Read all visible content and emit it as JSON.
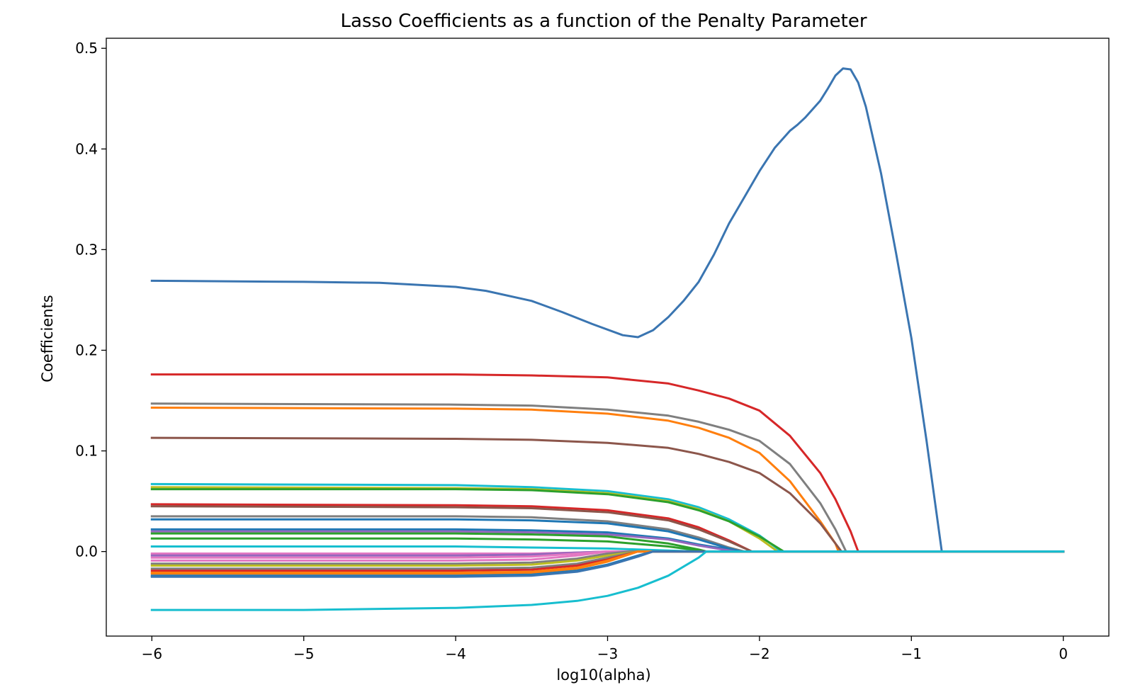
{
  "chart_data": {
    "type": "line",
    "title": "Lasso Coefficients as a function of the Penalty Parameter",
    "xlabel": "log10(alpha)",
    "ylabel": "Coefficients",
    "xlim": [
      -6.3,
      0.3
    ],
    "ylim": [
      -0.084,
      0.51
    ],
    "xticks": [
      -6,
      -5,
      -4,
      -3,
      -2,
      -1,
      0
    ],
    "xtick_labels": [
      "−6",
      "−5",
      "−4",
      "−3",
      "−2",
      "−1",
      "0"
    ],
    "yticks": [
      0.0,
      0.1,
      0.2,
      0.3,
      0.4,
      0.5
    ],
    "ytick_labels": [
      "0.0",
      "0.1",
      "0.2",
      "0.3",
      "0.4",
      "0.5"
    ],
    "grid": false,
    "legend": false,
    "series": [
      {
        "color": "#3a75b1",
        "x": [
          -6,
          -5,
          -4.5,
          -4,
          -3.8,
          -3.5,
          -3.3,
          -3.1,
          -2.9,
          -2.8,
          -2.7,
          -2.6,
          -2.5,
          -2.4,
          -2.3,
          -2.2,
          -2.1,
          -2.0,
          -1.9,
          -1.8,
          -1.75,
          -1.7,
          -1.6,
          -1.55,
          -1.5,
          -1.45,
          -1.4,
          -1.35,
          -1.3,
          -1.2,
          -1.1,
          -1.0,
          -0.9,
          -0.8,
          0
        ],
        "y": [
          0.269,
          0.268,
          0.267,
          0.263,
          0.259,
          0.249,
          0.238,
          0.226,
          0.215,
          0.213,
          0.22,
          0.233,
          0.249,
          0.268,
          0.295,
          0.326,
          0.352,
          0.378,
          0.401,
          0.418,
          0.424,
          0.431,
          0.448,
          0.46,
          0.473,
          0.48,
          0.479,
          0.466,
          0.442,
          0.376,
          0.296,
          0.212,
          0.11,
          0.0,
          0.0
        ]
      },
      {
        "color": "#d62728",
        "x": [
          -6,
          -4,
          -3.5,
          -3,
          -2.6,
          -2.4,
          -2.2,
          -2.0,
          -1.8,
          -1.6,
          -1.5,
          -1.4,
          -1.35,
          0
        ],
        "y": [
          0.176,
          0.176,
          0.175,
          0.173,
          0.167,
          0.16,
          0.152,
          0.14,
          0.115,
          0.078,
          0.052,
          0.02,
          0.0,
          0.0
        ]
      },
      {
        "color": "#7f7f7f",
        "x": [
          -6,
          -4,
          -3.5,
          -3,
          -2.6,
          -2.4,
          -2.2,
          -2.0,
          -1.8,
          -1.6,
          -1.5,
          -1.43,
          0
        ],
        "y": [
          0.147,
          0.146,
          0.145,
          0.141,
          0.135,
          0.129,
          0.121,
          0.11,
          0.087,
          0.048,
          0.022,
          0.0,
          0.0
        ]
      },
      {
        "color": "#ff7f0e",
        "x": [
          -6,
          -4,
          -3.5,
          -3,
          -2.6,
          -2.4,
          -2.2,
          -2.0,
          -1.8,
          -1.6,
          -1.5,
          -1.48,
          0
        ],
        "y": [
          0.143,
          0.142,
          0.141,
          0.137,
          0.13,
          0.123,
          0.113,
          0.098,
          0.07,
          0.03,
          0.008,
          0.0,
          0.0
        ]
      },
      {
        "color": "#8c564b",
        "x": [
          -6,
          -4,
          -3.5,
          -3,
          -2.6,
          -2.4,
          -2.2,
          -2.0,
          -1.8,
          -1.6,
          -1.5,
          -1.46,
          0
        ],
        "y": [
          0.113,
          0.112,
          0.111,
          0.108,
          0.103,
          0.097,
          0.089,
          0.078,
          0.058,
          0.028,
          0.008,
          0.0,
          0.0
        ]
      },
      {
        "color": "#17becf",
        "x": [
          -6,
          -4,
          -3.5,
          -3,
          -2.6,
          -2.4,
          -2.2,
          -2.0,
          -1.9,
          -1.86,
          0
        ],
        "y": [
          0.067,
          0.066,
          0.064,
          0.06,
          0.052,
          0.044,
          0.032,
          0.016,
          0.005,
          0.0,
          0.0
        ]
      },
      {
        "color": "#bcbd22",
        "x": [
          -6,
          -4,
          -3.5,
          -3,
          -2.6,
          -2.4,
          -2.2,
          -2.0,
          -1.88,
          0
        ],
        "y": [
          0.064,
          0.063,
          0.062,
          0.058,
          0.05,
          0.042,
          0.03,
          0.013,
          0.0,
          0.0
        ]
      },
      {
        "color": "#2ca02c",
        "x": [
          -6,
          -4,
          -3.5,
          -3,
          -2.6,
          -2.4,
          -2.2,
          -2.0,
          -1.84,
          0
        ],
        "y": [
          0.062,
          0.062,
          0.061,
          0.057,
          0.049,
          0.041,
          0.03,
          0.015,
          0.0,
          0.0
        ]
      },
      {
        "color": "#d62728",
        "x": [
          -6,
          -4,
          -3.5,
          -3,
          -2.6,
          -2.4,
          -2.2,
          -2.05,
          0
        ],
        "y": [
          0.047,
          0.046,
          0.045,
          0.041,
          0.033,
          0.024,
          0.011,
          0.0,
          0.0
        ]
      },
      {
        "color": "#8c564b",
        "x": [
          -6,
          -4,
          -3.5,
          -3,
          -2.6,
          -2.4,
          -2.2,
          -2.05,
          0
        ],
        "y": [
          0.045,
          0.044,
          0.043,
          0.039,
          0.031,
          0.022,
          0.01,
          0.0,
          0.0
        ]
      },
      {
        "color": "#7f7f7f",
        "x": [
          -6,
          -4,
          -3.5,
          -3,
          -2.6,
          -2.4,
          -2.2,
          -2.1,
          0
        ],
        "y": [
          0.035,
          0.035,
          0.034,
          0.03,
          0.022,
          0.014,
          0.004,
          0.0,
          0.0
        ]
      },
      {
        "color": "#1f77b4",
        "x": [
          -6,
          -4,
          -3.5,
          -3,
          -2.6,
          -2.4,
          -2.2,
          -2.12,
          0
        ],
        "y": [
          0.032,
          0.032,
          0.031,
          0.028,
          0.02,
          0.012,
          0.003,
          0.0,
          0.0
        ]
      },
      {
        "color": "#1f77b4",
        "x": [
          -6,
          -4,
          -3.5,
          -3,
          -2.6,
          -2.4,
          -2.2,
          -2.14,
          0
        ],
        "y": [
          0.022,
          0.022,
          0.021,
          0.019,
          0.013,
          0.007,
          0.002,
          0.0,
          0.0
        ]
      },
      {
        "color": "#9467bd",
        "x": [
          -6,
          -4,
          -3.5,
          -3,
          -2.6,
          -2.4,
          -2.2,
          -2.15,
          0
        ],
        "y": [
          0.02,
          0.02,
          0.019,
          0.017,
          0.012,
          0.006,
          0.001,
          0.0,
          0.0
        ]
      },
      {
        "color": "#2ca02c",
        "x": [
          -6,
          -4,
          -3.5,
          -3,
          -2.6,
          -2.4,
          -2.35,
          0
        ],
        "y": [
          0.018,
          0.018,
          0.017,
          0.015,
          0.008,
          0.002,
          0.0,
          0.0
        ]
      },
      {
        "color": "#2ca02c",
        "x": [
          -6,
          -4,
          -3.5,
          -3,
          -2.6,
          -2.4,
          -2.35,
          0
        ],
        "y": [
          0.013,
          0.013,
          0.012,
          0.01,
          0.005,
          0.001,
          0.0,
          0.0
        ]
      },
      {
        "color": "#17becf",
        "x": [
          -6,
          -4,
          -3.5,
          -3,
          -2.6,
          -2.4,
          0
        ],
        "y": [
          0.005,
          0.005,
          0.004,
          0.003,
          0.001,
          0.0,
          0.0
        ]
      },
      {
        "color": "#e377c2",
        "x": [
          -6,
          -4,
          -3.5,
          -3.2,
          -3.0,
          0
        ],
        "y": [
          -0.002,
          -0.002,
          -0.002,
          -0.001,
          0.0,
          0.0
        ]
      },
      {
        "color": "#9467bd",
        "x": [
          -6,
          -4,
          -3.5,
          -3.2,
          -3.0,
          0
        ],
        "y": [
          -0.004,
          -0.004,
          -0.003,
          -0.001,
          0.0,
          0.0
        ]
      },
      {
        "color": "#e377c2",
        "x": [
          -6,
          -4,
          -3.5,
          -3.2,
          -3.0,
          0
        ],
        "y": [
          -0.006,
          -0.006,
          -0.005,
          -0.002,
          0.0,
          0.0
        ]
      },
      {
        "color": "#e377c2",
        "x": [
          -6,
          -4,
          -3.5,
          -3.2,
          -3.0,
          0
        ],
        "y": [
          -0.009,
          -0.009,
          -0.008,
          -0.004,
          0.0,
          0.0
        ]
      },
      {
        "color": "#7f7f7f",
        "x": [
          -6,
          -4,
          -3.5,
          -3.2,
          -3.0,
          -2.85,
          0
        ],
        "y": [
          -0.012,
          -0.012,
          -0.011,
          -0.007,
          -0.002,
          0.0,
          0.0
        ]
      },
      {
        "color": "#bcbd22",
        "x": [
          -6,
          -4,
          -3.5,
          -3.2,
          -3.0,
          -2.8,
          0
        ],
        "y": [
          -0.014,
          -0.014,
          -0.013,
          -0.009,
          -0.004,
          0.0,
          0.0
        ]
      },
      {
        "color": "#7f7f7f",
        "x": [
          -6,
          -4,
          -3.5,
          -3.2,
          -3.0,
          -2.8,
          0
        ],
        "y": [
          -0.017,
          -0.017,
          -0.016,
          -0.012,
          -0.006,
          0.0,
          0.0
        ]
      },
      {
        "color": "#d62728",
        "x": [
          -6,
          -4,
          -3.5,
          -3.2,
          -3.0,
          -2.8,
          0
        ],
        "y": [
          -0.019,
          -0.019,
          -0.018,
          -0.014,
          -0.008,
          0.0,
          0.0
        ]
      },
      {
        "color": "#ff7f0e",
        "x": [
          -6,
          -4,
          -3.5,
          -3.2,
          -3.0,
          -2.8,
          0
        ],
        "y": [
          -0.021,
          -0.021,
          -0.02,
          -0.016,
          -0.009,
          0.0,
          0.0
        ]
      },
      {
        "color": "#ff7f0e",
        "x": [
          -6,
          -4,
          -3.5,
          -3.2,
          -3.0,
          -2.8,
          0
        ],
        "y": [
          -0.022,
          -0.022,
          -0.021,
          -0.017,
          -0.01,
          0.0,
          0.0
        ]
      },
      {
        "color": "#1f77b4",
        "x": [
          -6,
          -4,
          -3.5,
          -3.2,
          -3.0,
          -2.8,
          -2.7,
          0
        ],
        "y": [
          -0.024,
          -0.024,
          -0.023,
          -0.019,
          -0.013,
          -0.004,
          0.0,
          0.0
        ]
      },
      {
        "color": "#3a75b1",
        "x": [
          -6,
          -4,
          -3.5,
          -3.2,
          -3.0,
          -2.8,
          -2.7,
          0
        ],
        "y": [
          -0.025,
          -0.025,
          -0.024,
          -0.02,
          -0.014,
          -0.005,
          0.0,
          0.0
        ]
      },
      {
        "color": "#17becf",
        "x": [
          -6,
          -5,
          -4,
          -3.5,
          -3.2,
          -3.0,
          -2.8,
          -2.6,
          -2.4,
          -2.35,
          0
        ],
        "y": [
          -0.058,
          -0.058,
          -0.056,
          -0.053,
          -0.049,
          -0.044,
          -0.036,
          -0.024,
          -0.006,
          0.0,
          0.0
        ]
      }
    ]
  }
}
